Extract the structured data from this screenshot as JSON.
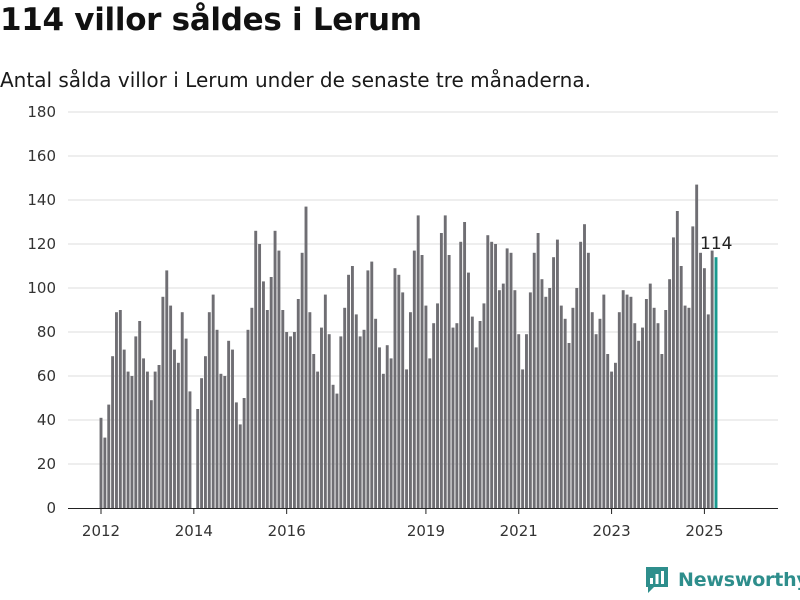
{
  "header": {
    "title": "114 villor såldes i Lerum",
    "subtitle": "Antal sålda villor i Lerum under de senaste tre månaderna."
  },
  "brand": {
    "name": "Newsworthy"
  },
  "colors": {
    "bar": "#6f6e73",
    "highlight": "#1a9a8f",
    "grid": "#dddddd",
    "brand": "#2e8e8c"
  },
  "chart_data": {
    "type": "bar",
    "title": "114 villor såldes i Lerum",
    "subtitle": "Antal sålda villor i Lerum under de senaste tre månaderna.",
    "ylim": [
      0,
      180
    ],
    "yticks": [
      0,
      20,
      40,
      60,
      80,
      100,
      120,
      140,
      160,
      180
    ],
    "xticks": [
      "2012",
      "2014",
      "2016",
      "2019",
      "2021",
      "2023",
      "2025"
    ],
    "x_start": "2012-01",
    "x_end": "2025-03",
    "values": [
      41,
      32,
      47,
      69,
      89,
      90,
      72,
      62,
      60,
      78,
      85,
      68,
      62,
      49,
      62,
      65,
      96,
      108,
      92,
      72,
      66,
      89,
      77,
      53,
      0,
      45,
      59,
      69,
      89,
      97,
      81,
      61,
      60,
      76,
      72,
      48,
      38,
      50,
      81,
      91,
      126,
      120,
      103,
      90,
      105,
      126,
      117,
      90,
      80,
      78,
      80,
      95,
      116,
      137,
      89,
      70,
      62,
      82,
      97,
      79,
      56,
      52,
      78,
      91,
      106,
      110,
      88,
      78,
      81,
      108,
      112,
      86,
      73,
      61,
      74,
      68,
      109,
      106,
      98,
      63,
      89,
      117,
      133,
      115,
      92,
      68,
      84,
      93,
      125,
      133,
      115,
      82,
      84,
      121,
      130,
      107,
      87,
      73,
      85,
      93,
      124,
      121,
      120,
      99,
      102,
      118,
      116,
      99,
      79,
      63,
      79,
      98,
      116,
      125,
      104,
      96,
      100,
      114,
      122,
      92,
      86,
      75,
      91,
      100,
      121,
      129,
      116,
      89,
      79,
      86,
      97,
      70,
      62,
      66,
      89,
      99,
      97,
      96,
      84,
      76,
      82,
      95,
      102,
      91,
      84,
      70,
      90,
      104,
      123,
      135,
      110,
      92,
      91,
      128,
      147,
      116,
      109,
      88,
      117,
      114
    ],
    "annotation": {
      "label": "114",
      "value": 114
    }
  }
}
